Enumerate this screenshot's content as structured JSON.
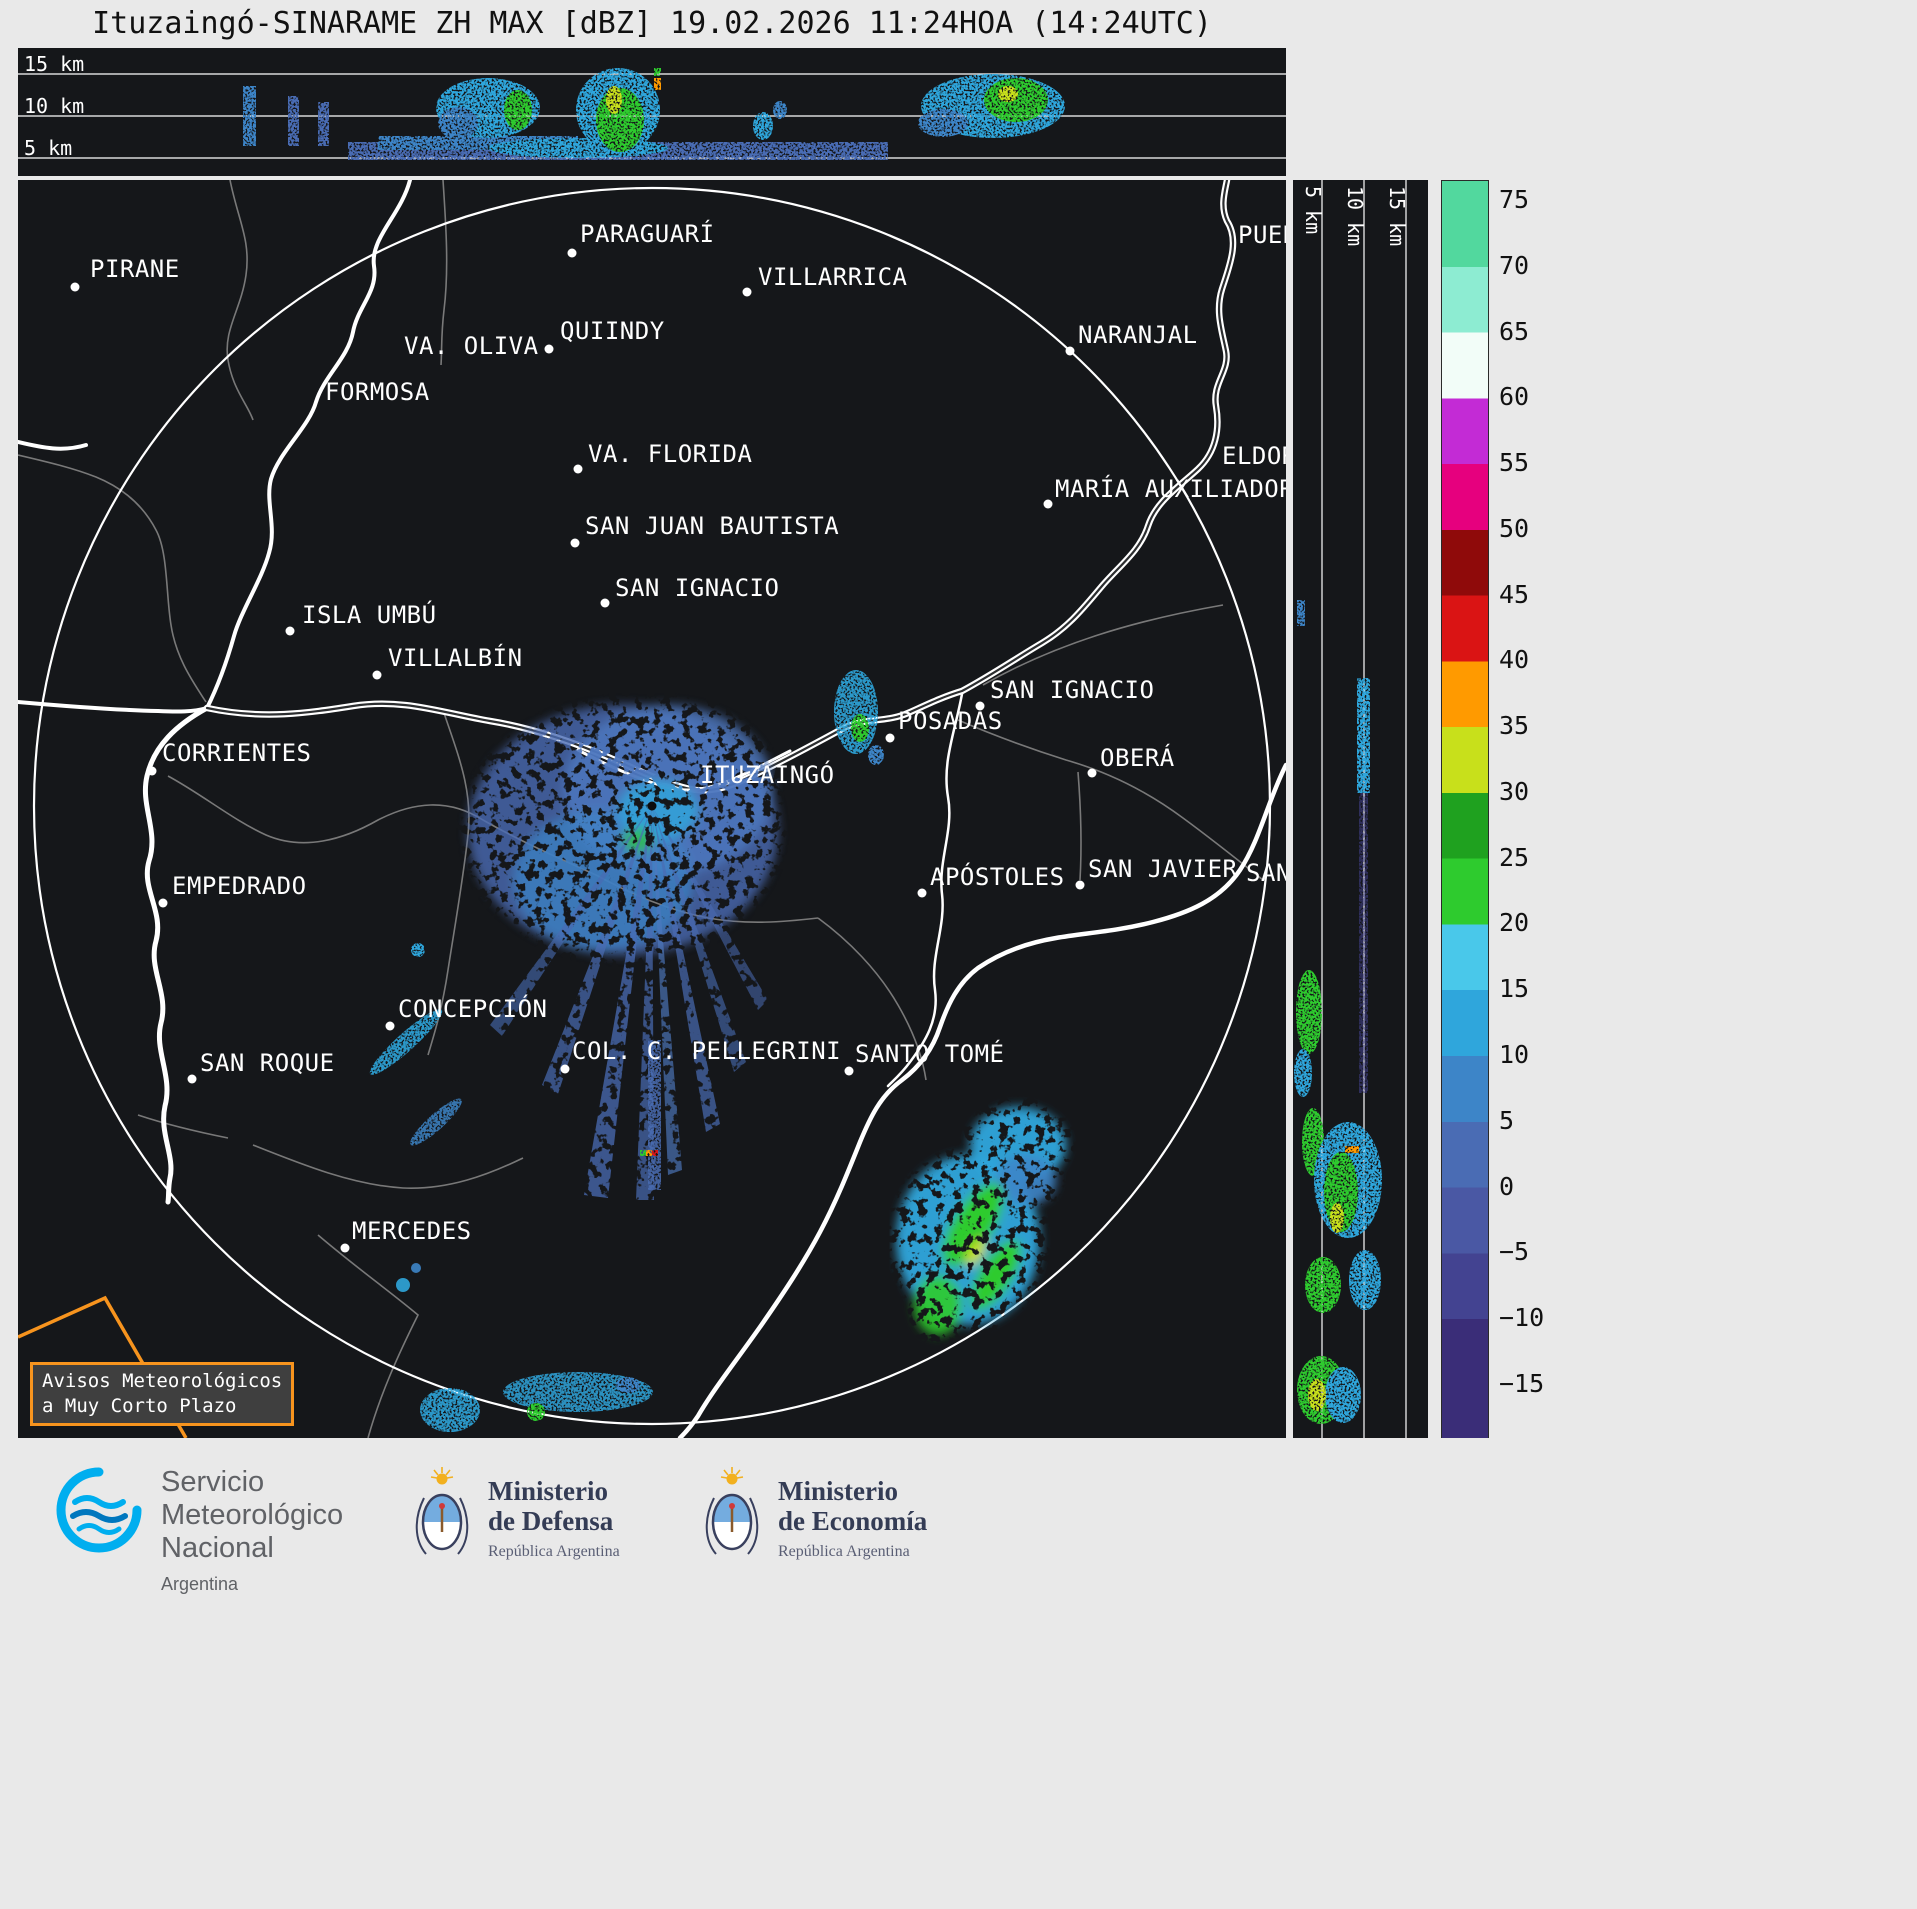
{
  "title": "Ituzaingó-SINARAME ZH MAX [dBZ] 19.02.2026 11:24HOA (14:24UTC)",
  "top_panel": {
    "altitude_labels": [
      "15 km",
      "10 km",
      "5 km"
    ]
  },
  "right_panel": {
    "altitude_labels": [
      "5 km",
      "10 km",
      "15 km"
    ]
  },
  "colorbar": {
    "ticks": [
      "75",
      "70",
      "65",
      "60",
      "55",
      "50",
      "45",
      "40",
      "35",
      "30",
      "25",
      "20",
      "15",
      "10",
      "5",
      "0",
      "−5",
      "−10",
      "−15"
    ],
    "segments": [
      {
        "from": 70,
        "to": 75,
        "color": "#52d89e"
      },
      {
        "from": 65,
        "to": 70,
        "color": "#8decd2"
      },
      {
        "from": 60,
        "to": 65,
        "color": "#f2fdf8"
      },
      {
        "from": 55,
        "to": 60,
        "color": "#c32bd5"
      },
      {
        "from": 50,
        "to": 55,
        "color": "#e6007e"
      },
      {
        "from": 45,
        "to": 50,
        "color": "#8f0a0a"
      },
      {
        "from": 40,
        "to": 45,
        "color": "#da1414"
      },
      {
        "from": 35,
        "to": 40,
        "color": "#ff9a00"
      },
      {
        "from": 30,
        "to": 35,
        "color": "#c8e01b"
      },
      {
        "from": 25,
        "to": 30,
        "color": "#1fa11f"
      },
      {
        "from": 20,
        "to": 25,
        "color": "#2ecb2e"
      },
      {
        "from": 15,
        "to": 20,
        "color": "#49c8ea"
      },
      {
        "from": 10,
        "to": 15,
        "color": "#2fa6dc"
      },
      {
        "from": 5,
        "to": 10,
        "color": "#3d85c8"
      },
      {
        "from": 0,
        "to": 5,
        "color": "#4a6cb4"
      },
      {
        "from": -5,
        "to": 0,
        "color": "#4a58a4"
      },
      {
        "from": -10,
        "to": -5,
        "color": "#434391"
      },
      {
        "from": -15,
        "to": -10,
        "color": "#3a2d78"
      }
    ]
  },
  "map": {
    "accent_orange": "#f7941e",
    "warning_box": {
      "line1": "Avisos Meteorológicos",
      "line2": "a Muy Corto Plazo"
    },
    "cities": [
      {
        "name": "PIRANE",
        "label": [
          72,
          75
        ],
        "dot": [
          57,
          107
        ]
      },
      {
        "name": "PARAGUARÍ",
        "label": [
          562,
          40
        ],
        "dot": [
          554,
          73
        ]
      },
      {
        "name": "VILLARRICA",
        "label": [
          740,
          83
        ],
        "dot": [
          729,
          112
        ]
      },
      {
        "name": "QUIINDY",
        "label": [
          542,
          137
        ],
        "dot": [
          531,
          169
        ]
      },
      {
        "name": "VA. OLIVA",
        "label": [
          386,
          152
        ],
        "dot": null
      },
      {
        "name": "FORMOSA",
        "label": [
          307,
          198
        ],
        "dot": null
      },
      {
        "name": "VA. FLORIDA",
        "label": [
          570,
          260
        ],
        "dot": [
          560,
          289
        ]
      },
      {
        "name": "MARÍA AUXILIADORA",
        "label": [
          1037,
          295
        ],
        "dot": [
          1030,
          324
        ]
      },
      {
        "name": "NARANJAL",
        "label": [
          1060,
          141
        ],
        "dot": [
          1052,
          171
        ]
      },
      {
        "name": "ELDORADO",
        "label": [
          1204,
          262
        ],
        "dot": null
      },
      {
        "name": "PUERTO",
        "label": [
          1220,
          41
        ],
        "dot": null
      },
      {
        "name": "SAN JUAN BAUTISTA",
        "label": [
          567,
          332
        ],
        "dot": [
          557,
          363
        ]
      },
      {
        "name": "SAN IGNACIO",
        "label": [
          597,
          394
        ],
        "dot": [
          587,
          423
        ]
      },
      {
        "name": "ISLA UMBÚ",
        "label": [
          284,
          421
        ],
        "dot": [
          272,
          451
        ]
      },
      {
        "name": "VILLALBÍN",
        "label": [
          370,
          464
        ],
        "dot": [
          359,
          495
        ]
      },
      {
        "name": "SAN IGNACIO",
        "label": [
          972,
          496
        ],
        "dot": [
          962,
          526
        ]
      },
      {
        "name": "POSADAS",
        "label": [
          880,
          527
        ],
        "dot": [
          872,
          558
        ]
      },
      {
        "name": "CORRIENTES",
        "label": [
          144,
          559
        ],
        "dot": [
          134,
          591
        ]
      },
      {
        "name": "ITUZAINGÓ",
        "label": [
          682,
          581
        ],
        "dot": [
          634,
          626
        ],
        "dot_color": "#0d0d0d"
      },
      {
        "name": "OBERÁ",
        "label": [
          1082,
          564
        ],
        "dot": [
          1074,
          593
        ]
      },
      {
        "name": "EMPEDRADO",
        "label": [
          154,
          692
        ],
        "dot": [
          145,
          723
        ]
      },
      {
        "name": "APÓSTOLES",
        "label": [
          912,
          683
        ],
        "dot": [
          904,
          713
        ]
      },
      {
        "name": "SAN JAVIER",
        "label": [
          1070,
          675
        ],
        "dot": [
          1062,
          705
        ]
      },
      {
        "name": "SANTA",
        "label": [
          1228,
          679
        ],
        "dot": null
      },
      {
        "name": "CONCEPCIÓN",
        "label": [
          380,
          815
        ],
        "dot": [
          372,
          846
        ]
      },
      {
        "name": "SAN ROQUE",
        "label": [
          182,
          869
        ],
        "dot": [
          174,
          899
        ]
      },
      {
        "name": "COL. C. PELLEGRINI",
        "label": [
          554,
          857
        ],
        "dot": [
          547,
          889
        ]
      },
      {
        "name": "SANTO TOMÉ",
        "label": [
          837,
          860
        ],
        "dot": [
          831,
          891
        ]
      },
      {
        "name": "MERCEDES",
        "label": [
          334,
          1037
        ],
        "dot": [
          327,
          1068
        ]
      }
    ]
  },
  "footer": {
    "smn": {
      "icon": "smn-swirl-logo",
      "lines": [
        "Servicio",
        "Meteorológico",
        "Nacional"
      ],
      "country": "Argentina"
    },
    "defensa": {
      "icon": "argentina-coat-of-arms",
      "title1": "Ministerio",
      "title2": "de Defensa",
      "subtitle": "República Argentina"
    },
    "economia": {
      "icon": "argentina-coat-of-arms",
      "title1": "Ministerio",
      "title2": "de Economía",
      "subtitle": "República Argentina"
    }
  }
}
